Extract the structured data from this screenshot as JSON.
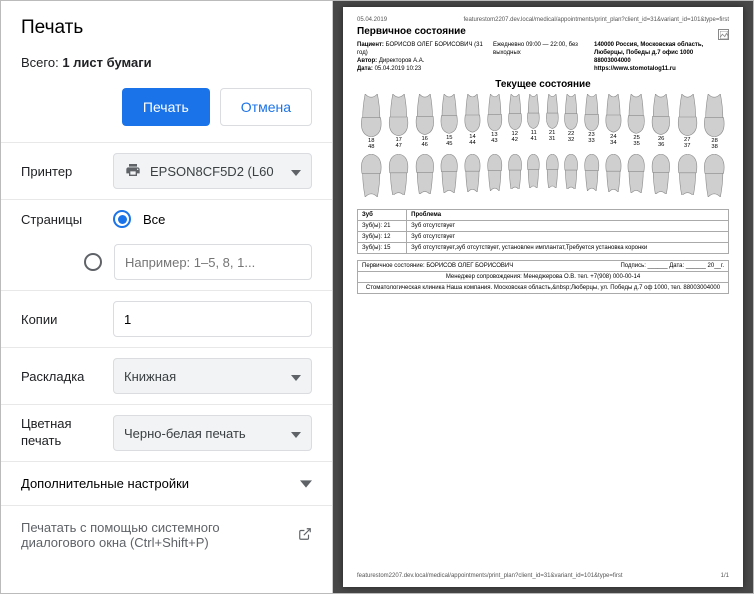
{
  "colors": {
    "accent": "#1a73e8",
    "border": "#dadce0",
    "preview_bg": "#484848"
  },
  "header": {
    "title": "Печать",
    "total_prefix": "Всего: ",
    "total_value": "1 лист бумаги"
  },
  "buttons": {
    "print": "Печать",
    "cancel": "Отмена"
  },
  "printer": {
    "label": "Принтер",
    "value": "EPSON8CF5D2 (L60"
  },
  "pages": {
    "label": "Страницы",
    "all": "Все",
    "custom_placeholder": "Например: 1–5, 8, 1..."
  },
  "copies": {
    "label": "Копии",
    "value": "1"
  },
  "layout": {
    "label": "Раскладка",
    "value": "Книжная"
  },
  "color": {
    "label": "Цветная печать",
    "value": "Черно-белая печать"
  },
  "advanced": "Дополнительные настройки",
  "system_dialog": "Печатать с помощью системного диалогового окна (Ctrl+Shift+P)",
  "preview": {
    "url_top": "featurestom2207.dev.local/medical/appointments/print_plan?client_id=31&variant_id=101&type=first",
    "date_top": "05.04.2019",
    "doc_title": "Первичное состояние",
    "patient_label": "Пациент:",
    "patient": "БОРИСОВ ОЛЕГ БОРИСОВИЧ (31 год)",
    "author_label": "Автор:",
    "author": "Директоров А.А.",
    "created_label": "Дата:",
    "created": "05.04.2019 10:23",
    "schedule": "Ежедневно 09:00 — 22:00, без выходных",
    "address1": "140000 Россия, Московская область,",
    "address2": "Люберцы, Победы д.7 офис 1000",
    "phone": "88003004000",
    "site": "https://www.stomotalog11.ru",
    "current_title": "Текущее состояние",
    "upper_numbers_top": [
      "18",
      "17",
      "16",
      "15",
      "14",
      "13",
      "12",
      "11",
      "21",
      "22",
      "23",
      "24",
      "25",
      "26",
      "27",
      "28"
    ],
    "lower_numbers": [
      "48",
      "47",
      "46",
      "45",
      "44",
      "43",
      "42",
      "41",
      "31",
      "32",
      "33",
      "34",
      "35",
      "36",
      "37",
      "38"
    ],
    "tooth_color": "#cfcfcf",
    "tooth_stroke": "#8a8a8a",
    "table": {
      "headers": [
        "Зуб",
        "Проблема"
      ],
      "rows": [
        [
          "Зуб(ы):  21",
          "Зуб отсутствует"
        ],
        [
          "Зуб(ы):  12",
          "Зуб отсутствует"
        ],
        [
          "Зуб(ы):  15",
          "Зуб отсутствует,зуб отсутствует, установлен имплантат,Требуется установка коронки"
        ]
      ]
    },
    "sig_line1_left": "Первичное состояние: БОРИСОВ ОЛЕГ БОРИСОВИЧ",
    "sig_line1_right": "Подпись: ______  Дата: ______ 20__г.",
    "sig_line2": "Менеджер сопровождения: Менеджерова О.В. тел. +7(908) 000-00-14",
    "sig_line3": "Стоматологическая клиника Наша компания. Московская область,&nbsp;Люберцы, ул. Победы д.7 оф 1000, тел. 88003004000",
    "footer_left": "featurestom2207.dev.local/medical/appointments/print_plan?client_id=31&variant_id=101&type=first",
    "footer_right": "1/1"
  }
}
